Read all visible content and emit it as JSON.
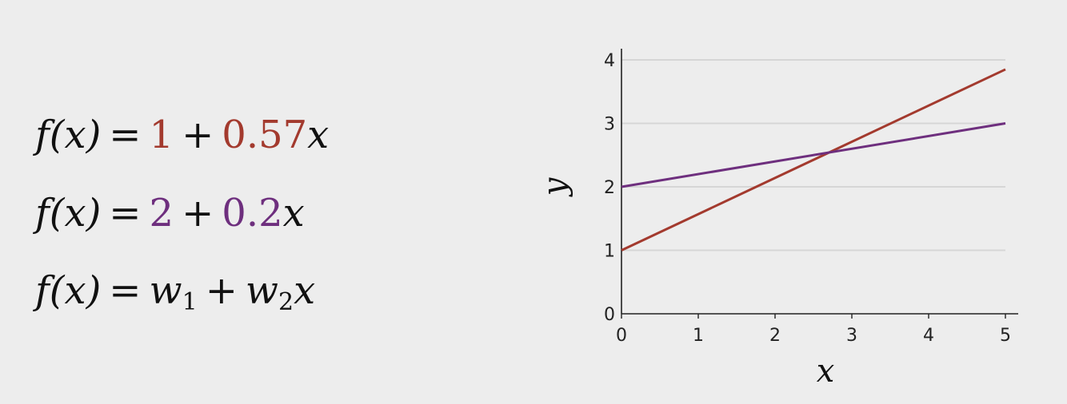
{
  "equations": [
    {
      "lhs": "f(x)",
      "eq": "=",
      "c1": "1",
      "plus": "+",
      "c2": "0.57",
      "var": "x",
      "color": "#a33a2e"
    },
    {
      "lhs": "f(x)",
      "eq": "=",
      "c1": "2",
      "plus": "+",
      "c2": "0.2",
      "var": "x",
      "color": "#6e2f7e"
    },
    {
      "lhs": "f(x)",
      "eq": "=",
      "w1_base": "w",
      "w1_sub": "1",
      "plus": "+",
      "w2_base": "w",
      "w2_sub": "2",
      "var": "x"
    }
  ],
  "chart_data": {
    "type": "line",
    "xlabel": "x",
    "ylabel": "y",
    "xlim": [
      0,
      5
    ],
    "ylim": [
      0,
      4
    ],
    "xticks": [
      0,
      1,
      2,
      3,
      4,
      5
    ],
    "yticks": [
      0,
      1,
      2,
      3,
      4
    ],
    "grid": "horizontal",
    "series": [
      {
        "x": [
          0,
          5
        ],
        "y": [
          1,
          3.85
        ],
        "color": "#a33a2e"
      },
      {
        "x": [
          0,
          5
        ],
        "y": [
          2,
          3.0
        ],
        "color": "#6e2f7e"
      }
    ]
  }
}
